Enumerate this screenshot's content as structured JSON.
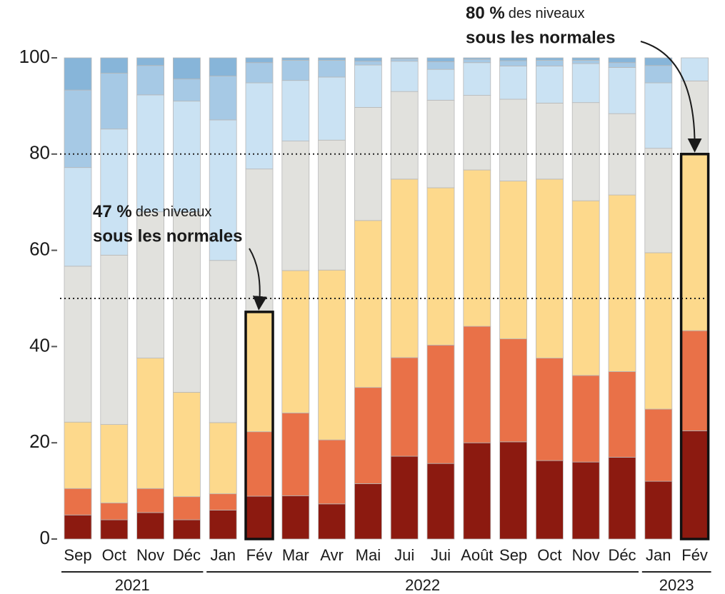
{
  "chart_data": {
    "type": "stacked_bar",
    "categories": [
      "Sep",
      "Oct",
      "Nov",
      "Déc",
      "Jan",
      "Fév",
      "Mar",
      "Avr",
      "Mai",
      "Jui",
      "Jui",
      "Août",
      "Sep",
      "Oct",
      "Nov",
      "Déc",
      "Jan",
      "Fév"
    ],
    "groups": [
      {
        "label": "2021",
        "count": 4
      },
      {
        "label": "2022",
        "count": 12
      },
      {
        "label": "2023",
        "count": 2
      }
    ],
    "series": [
      {
        "color": "#8c1a10",
        "values": [
          5,
          4,
          5.5,
          4,
          6,
          8.9,
          9,
          7.3,
          11.5,
          17.2,
          15.7,
          20,
          20.2,
          16.3,
          16,
          17,
          12,
          22.5
        ]
      },
      {
        "color": "#e97148",
        "values": [
          5.5,
          3.5,
          5,
          4.8,
          3.4,
          13.4,
          17.2,
          13.3,
          20,
          20.5,
          24.6,
          24.2,
          21.4,
          21.3,
          18,
          17.8,
          15,
          20.8
        ]
      },
      {
        "color": "#fdd98c",
        "values": [
          13.8,
          16.3,
          27.1,
          21.7,
          14.8,
          24.9,
          29.6,
          35.3,
          34.7,
          37.1,
          32.7,
          32.5,
          32.8,
          37.2,
          36.3,
          36.7,
          32.5,
          36.7
        ]
      },
      {
        "color": "#e1e1dd",
        "values": [
          32.4,
          35.2,
          30.4,
          37.5,
          33.7,
          29.7,
          26.9,
          27,
          23.5,
          18.2,
          18.2,
          15.5,
          17,
          15.8,
          20.4,
          16.9,
          21.7,
          15.2
        ]
      },
      {
        "color": "#cae2f3",
        "values": [
          20.5,
          26.2,
          24.3,
          23,
          29.2,
          17.9,
          12.6,
          13.1,
          8.8,
          6.3,
          6.4,
          6.8,
          6.9,
          7.7,
          8.1,
          9.6,
          13.6,
          4.8
        ]
      },
      {
        "color": "#a6c9e5",
        "values": [
          16.1,
          11.6,
          6.1,
          4.6,
          9.1,
          4.2,
          4.2,
          3.5,
          0.8,
          0.5,
          1.6,
          0.7,
          1.1,
          1.2,
          0.7,
          1,
          3.6,
          0
        ]
      },
      {
        "color": "#87b5d9",
        "values": [
          6.7,
          3.2,
          1.6,
          4.4,
          3.8,
          1,
          0.5,
          0.5,
          0.7,
          0.2,
          0.8,
          0.3,
          0.6,
          0.5,
          0.5,
          1,
          1.6,
          0
        ]
      }
    ],
    "ylim": [
      0,
      100
    ],
    "yticks": [
      0,
      20,
      40,
      60,
      80,
      100
    ],
    "reference_lines": [
      80,
      50
    ],
    "highlight": [
      5,
      17
    ],
    "annotations": [
      {
        "bold": "47 %",
        "text": "des niveaux",
        "bold2": "sous les normales",
        "target": 5
      },
      {
        "bold": "80 %",
        "text": "des niveaux",
        "bold2": "sous les normales",
        "target": 17
      }
    ]
  }
}
